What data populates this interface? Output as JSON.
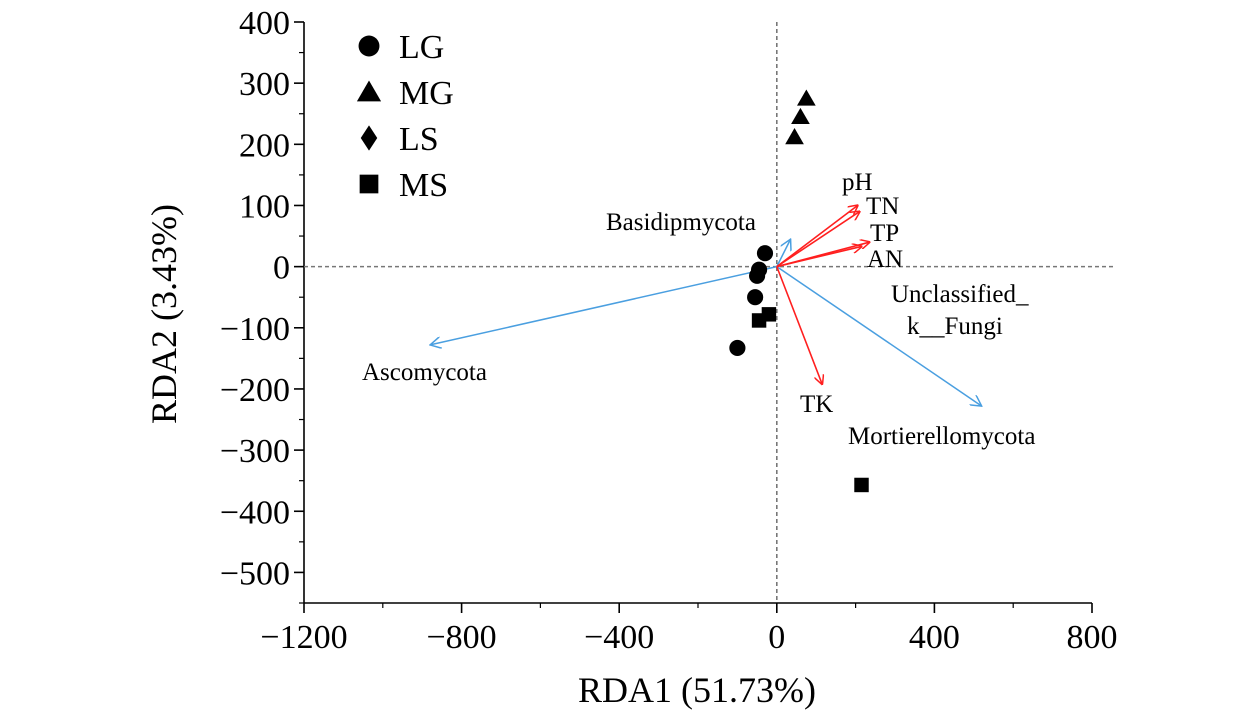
{
  "chart_data": {
    "type": "scatter",
    "xlabel": "RDA1 (51.73%)",
    "ylabel": "RDA2 (3.43%)",
    "xlim": [
      -1200,
      800
    ],
    "ylim": [
      -550,
      400
    ],
    "x_ticks": [
      -1200,
      -800,
      -400,
      0,
      400,
      800
    ],
    "x_tick_labels": [
      "−1200",
      "−800",
      "−400",
      "0",
      "400",
      "800"
    ],
    "y_ticks": [
      400,
      300,
      200,
      100,
      0,
      -100,
      -200,
      -300,
      -400,
      -500
    ],
    "y_tick_labels": [
      "400",
      "300",
      "200",
      "100",
      "0",
      "−100",
      "−200",
      "−300",
      "−400",
      "−500"
    ],
    "reference_lines": {
      "x": 0,
      "y": 0
    },
    "legend_position": "top-left",
    "series": [
      {
        "name": "LG",
        "marker": "circle",
        "points": [
          [
            -30,
            22
          ],
          [
            -45,
            -5
          ],
          [
            -50,
            -15
          ],
          [
            -55,
            -50
          ],
          [
            -100,
            -133
          ]
        ]
      },
      {
        "name": "MG",
        "marker": "triangle",
        "points": [
          [
            75,
            275
          ],
          [
            60,
            245
          ],
          [
            45,
            212
          ]
        ]
      },
      {
        "name": "LS",
        "marker": "diamond",
        "points": []
      },
      {
        "name": "MS",
        "marker": "square",
        "points": [
          [
            -45,
            -88
          ],
          [
            -20,
            -78
          ],
          [
            215,
            -357
          ]
        ]
      }
    ],
    "environmental_vectors": [
      {
        "label": "pH",
        "x": 205,
        "y": 100,
        "color": "#ff1f1f"
      },
      {
        "label": "TN",
        "x": 210,
        "y": 90,
        "color": "#ff1f1f"
      },
      {
        "label": "TP",
        "x": 235,
        "y": 40,
        "color": "#ff1f1f"
      },
      {
        "label": "AN",
        "x": 215,
        "y": 33,
        "color": "#ff1f1f"
      },
      {
        "label": "TK",
        "x": 115,
        "y": -192,
        "color": "#ff1f1f"
      }
    ],
    "species_vectors": [
      {
        "label": "Basidipmycota",
        "x": 35,
        "y": 45,
        "color": "#4a9fe0"
      },
      {
        "label": "Ascomycota",
        "x": -880,
        "y": -128,
        "color": "#4a9fe0"
      },
      {
        "label": "Unclassified_",
        "label2": "k__Fungi",
        "x": 520,
        "y": -228,
        "color": "#4a9fe0"
      },
      {
        "label": "Mortierellomycota",
        "x": 520,
        "y": -228,
        "color": "#4a9fe0",
        "label_only": true
      }
    ]
  }
}
